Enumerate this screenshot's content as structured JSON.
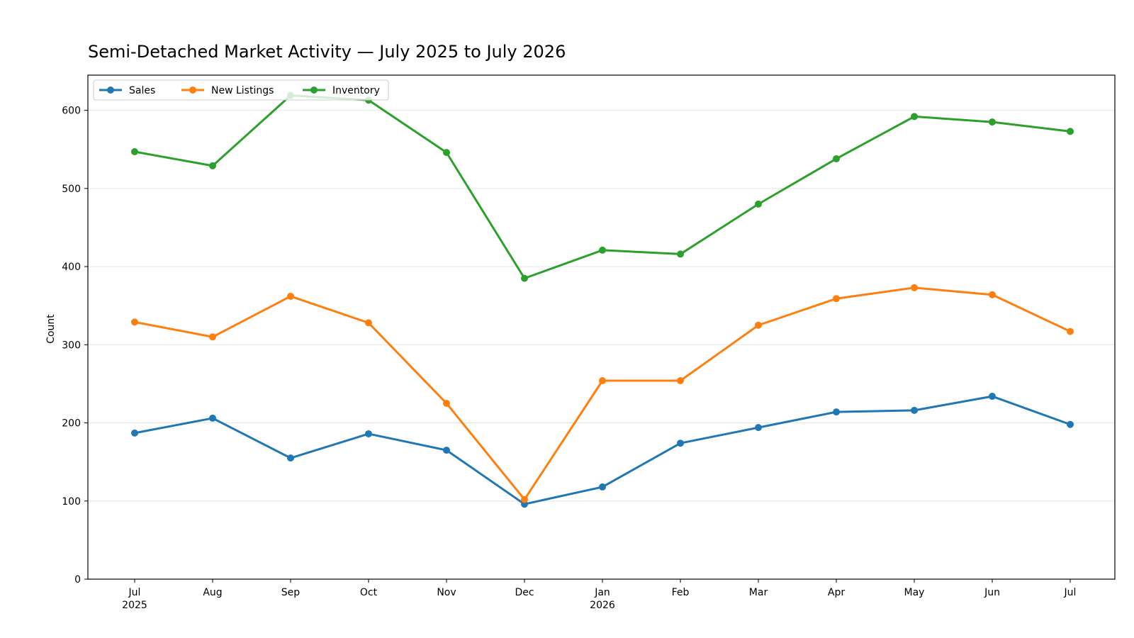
{
  "chart_data": {
    "type": "line",
    "title": "Semi-Detached Market Activity — July 2025 to July 2026",
    "xlabel": "",
    "ylabel": "Count",
    "ylim": [
      0,
      645
    ],
    "yticks": [
      0,
      100,
      200,
      300,
      400,
      500,
      600
    ],
    "grid": "horizontal",
    "legend_position": "top-left",
    "categories": [
      "Jul",
      "Aug",
      "Sep",
      "Oct",
      "Nov",
      "Dec",
      "Jan",
      "Feb",
      "Mar",
      "Apr",
      "May",
      "Jun",
      "Jul"
    ],
    "x": [
      "2025-07",
      "2025-08",
      "2025-09",
      "2025-10",
      "2025-11",
      "2025-12",
      "2026-01",
      "2026-02",
      "2026-03",
      "2026-04",
      "2026-05",
      "2026-06",
      "2026-07"
    ],
    "year_labels": [
      {
        "index": 0,
        "label": "2025"
      },
      {
        "index": 6,
        "label": "2026"
      }
    ],
    "series": [
      {
        "name": "Sales",
        "color": "#1f77b4",
        "values": [
          187,
          206,
          155,
          186,
          165,
          96,
          118,
          174,
          194,
          214,
          216,
          234,
          198
        ]
      },
      {
        "name": "New Listings",
        "color": "#ff7f0e",
        "values": [
          329,
          310,
          362,
          328,
          225,
          102,
          254,
          254,
          325,
          359,
          373,
          364,
          317
        ]
      },
      {
        "name": "Inventory",
        "color": "#2ca02c",
        "values": [
          547,
          529,
          619,
          613,
          546,
          385,
          421,
          416,
          480,
          538,
          592,
          585,
          573
        ]
      }
    ]
  }
}
